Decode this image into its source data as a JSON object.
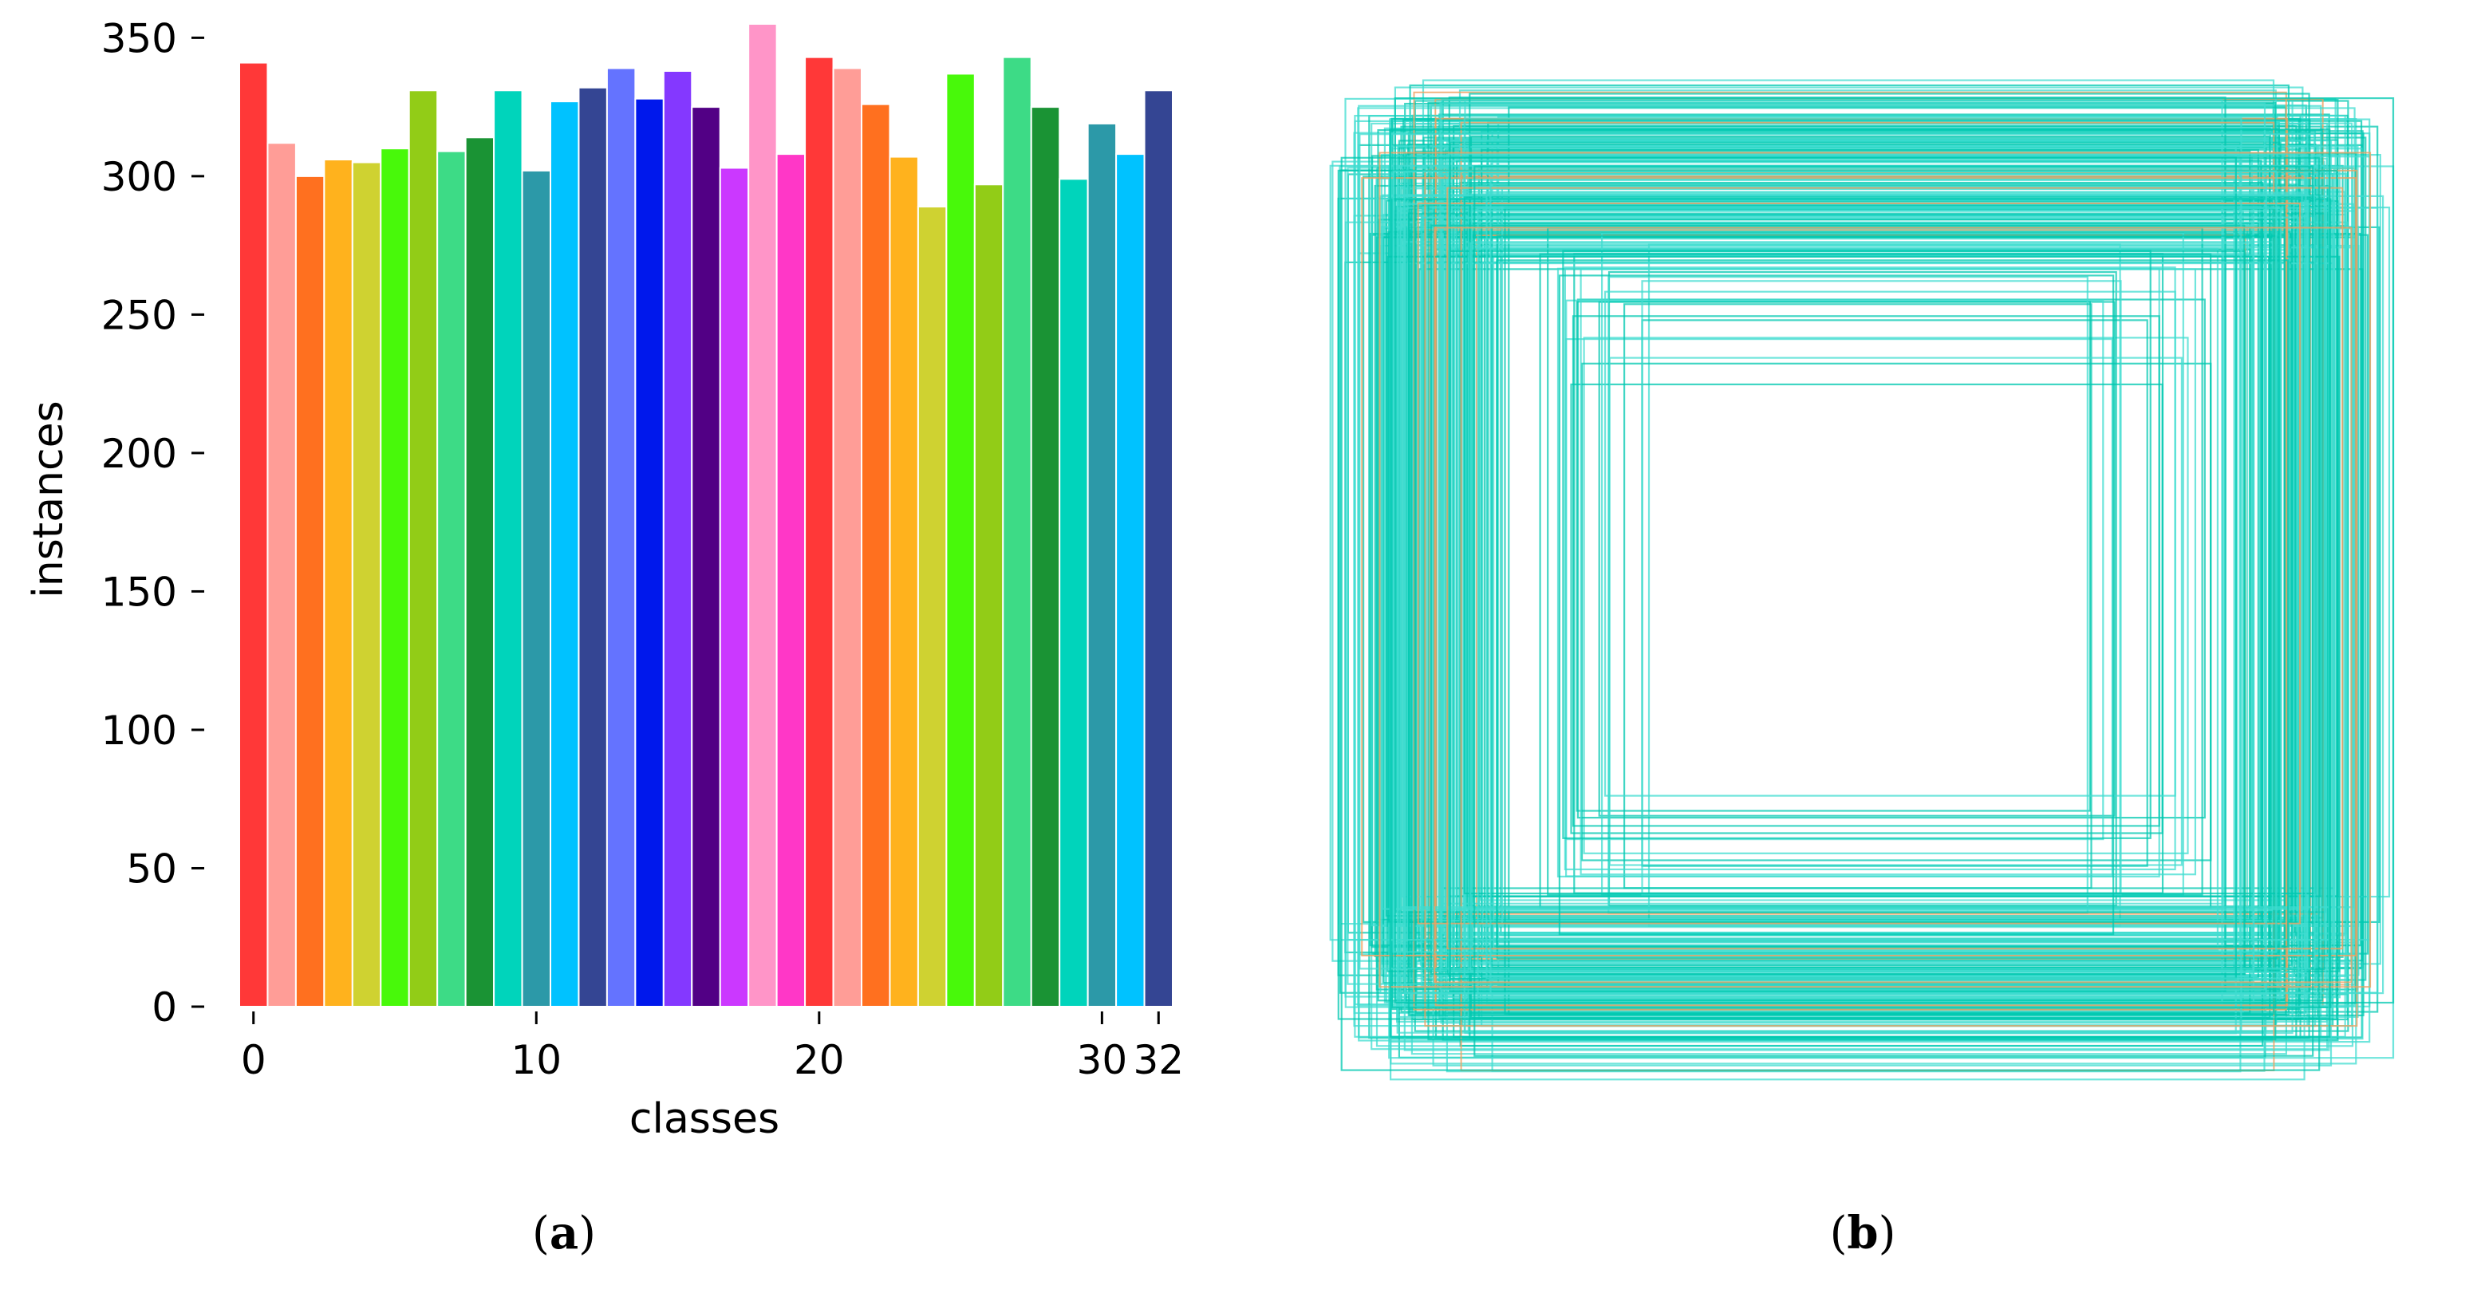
{
  "panels": {
    "a": {
      "open": "(",
      "letter": "a",
      "close": ")"
    },
    "b": {
      "open": "(",
      "letter": "b",
      "close": ")"
    }
  },
  "chart_data": [
    {
      "type": "bar",
      "xlabel": "classes",
      "ylabel": "instances",
      "ylim": [
        0,
        355
      ],
      "xlim": [
        -0.5,
        32.5
      ],
      "x_ticks": [
        0,
        10,
        20,
        30,
        32
      ],
      "y_ticks": [
        0,
        50,
        100,
        150,
        200,
        250,
        300,
        350
      ],
      "grid": false,
      "x": [
        0,
        1,
        2,
        3,
        4,
        5,
        6,
        7,
        8,
        9,
        10,
        11,
        12,
        13,
        14,
        15,
        16,
        17,
        18,
        19,
        20,
        21,
        22,
        23,
        24,
        25,
        26,
        27,
        28,
        29,
        30,
        31,
        32
      ],
      "values": [
        341,
        312,
        300,
        306,
        305,
        310,
        331,
        309,
        314,
        331,
        302,
        327,
        332,
        339,
        328,
        338,
        325,
        303,
        355,
        308,
        343,
        339,
        326,
        307,
        289,
        337,
        297,
        343,
        325,
        299,
        319,
        308,
        331
      ],
      "colors": [
        "#ff3838",
        "#ff9d97",
        "#ff701f",
        "#ffb21d",
        "#cfd231",
        "#48f90a",
        "#92cc17",
        "#3ddb86",
        "#1a9334",
        "#00d4bb",
        "#2c99a8",
        "#00c2ff",
        "#344593",
        "#6473ff",
        "#0018ec",
        "#8438ff",
        "#520085",
        "#cb38ff",
        "#ff95c8",
        "#ff37c7",
        "#ff3838",
        "#ff9d97",
        "#ff701f",
        "#ffb21d",
        "#cfd231",
        "#48f90a",
        "#92cc17",
        "#3ddb86",
        "#1a9334",
        "#00d4bb",
        "#2c99a8",
        "#00c2ff",
        "#344593"
      ]
    },
    {
      "type": "other",
      "description_colors": {
        "box": "#00c8b0",
        "box_light": "#40dcd0",
        "accent": "#f0a060"
      }
    }
  ]
}
